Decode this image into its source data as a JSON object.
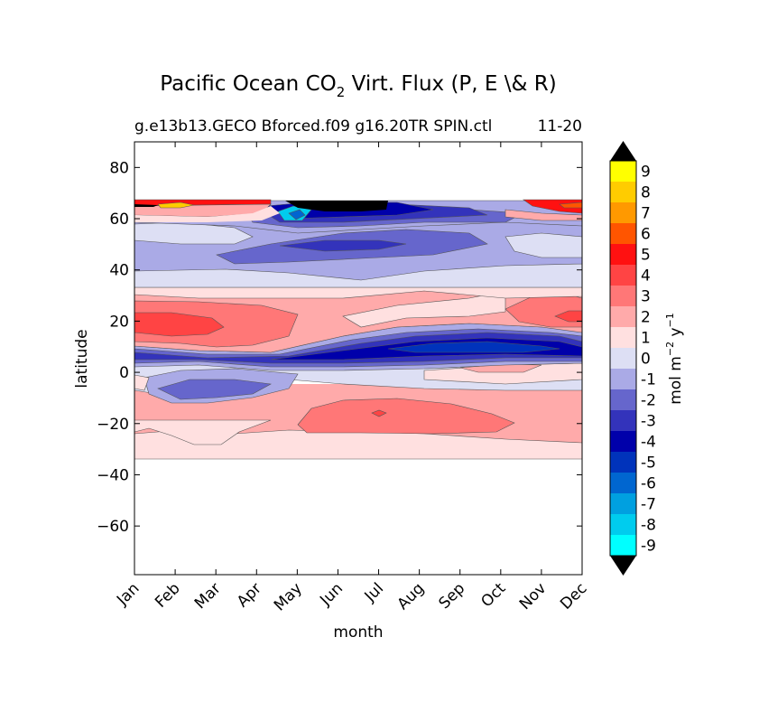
{
  "chart_data": {
    "type": "heatmap",
    "title": "Pacific Ocean CO",
    "title_sub": "2",
    "title_rest": " Virt. Flux (P, E \\& R)",
    "subtitle_left": "g.e13b13.GECO Bforced.f09 g16.20TR SPIN.ctl",
    "subtitle_right": "11-20",
    "xlabel": "month",
    "ylabel": "latitude",
    "x_ticks": [
      "Jan",
      "Feb",
      "Mar",
      "Apr",
      "May",
      "Jun",
      "Jul",
      "Aug",
      "Sep",
      "Oct",
      "Nov",
      "Dec"
    ],
    "y_ticks": [
      "80",
      "60",
      "40",
      "20",
      "0",
      "−20",
      "−40",
      "−60"
    ],
    "y_tick_values": [
      80,
      60,
      40,
      20,
      0,
      -20,
      -40,
      -60
    ],
    "ylim": [
      -79,
      90
    ],
    "data_lat_range": [
      -34,
      67
    ],
    "colorbar": {
      "label": "mol m",
      "label_sup1": "−2",
      "label_mid": " y",
      "label_sup2": "−1",
      "levels": [
        "-9",
        "-8",
        "-7",
        "-6",
        "-5",
        "-4",
        "-3",
        "-2",
        "-1",
        "0",
        "1",
        "2",
        "3",
        "4",
        "5",
        "6",
        "7",
        "8",
        "9"
      ],
      "colors": [
        "#00ffff",
        "#00ccee",
        "#00a0e0",
        "#0066d0",
        "#0033bb",
        "#0000aa",
        "#3333bb",
        "#6666cc",
        "#aaaae6",
        "#dddff4",
        "#ffe0e0",
        "#ffaaaa",
        "#ff7777",
        "#ff4444",
        "#ff1111",
        "#ff5500",
        "#ff9900",
        "#ffcc00",
        "#ffff00"
      ],
      "under_color": "#000000",
      "over_color": "#000000"
    },
    "contour_bands": [
      {
        "level": "0",
        "top": [
          [
            0,
            -34
          ],
          [
            12,
            -34
          ]
        ],
        "bottom": [
          [
            0,
            -34
          ],
          [
            12,
            -34
          ]
        ]
      },
      {
        "level": "1",
        "top": [
          [
            0,
            -25
          ],
          [
            1,
            -24
          ],
          [
            2,
            -27
          ],
          [
            3,
            -27
          ],
          [
            4,
            -24
          ],
          [
            6,
            -21
          ],
          [
            8,
            -21
          ],
          [
            10,
            -22
          ],
          [
            12,
            -22
          ]
        ],
        "bottom": [
          [
            0,
            -34
          ],
          [
            12,
            -34
          ]
        ]
      },
      {
        "level": "2",
        "top": [
          [
            5.5,
            -11
          ],
          [
            7,
            -11
          ],
          [
            8.5,
            -13
          ],
          [
            9.5,
            -16
          ],
          [
            9,
            -21
          ],
          [
            7,
            -23
          ],
          [
            5.5,
            -21
          ],
          [
            5.5,
            -17
          ]
        ],
        "note": "closed"
      },
      {
        "level": "3",
        "top": [
          [
            6.3,
            -15.5
          ],
          [
            6.5,
            -16
          ],
          [
            6.3,
            -16.5
          ],
          [
            6.1,
            -16
          ]
        ],
        "note": "closed"
      }
    ]
  }
}
